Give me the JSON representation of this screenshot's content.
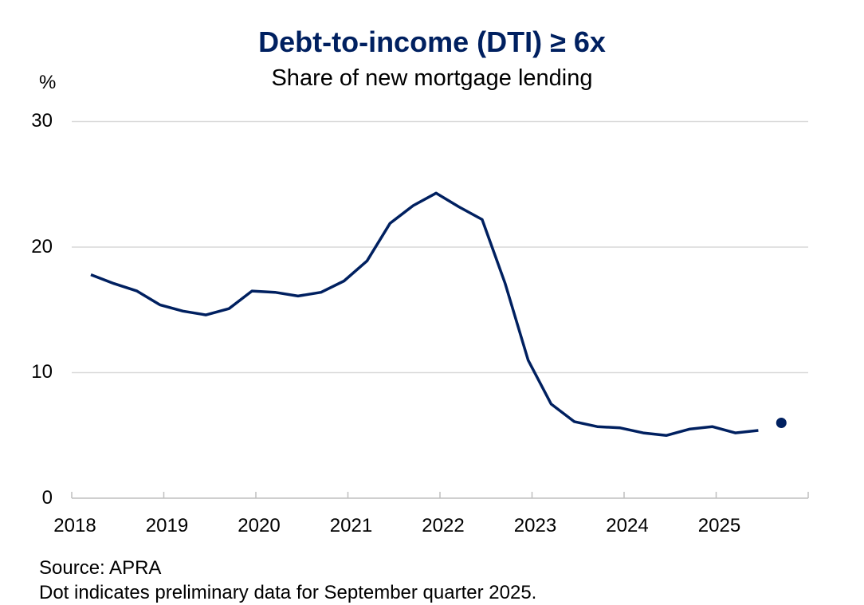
{
  "header": {
    "title": "Debt-to-income (DTI) ≥ 6x",
    "subtitle": "Share of new mortgage lending",
    "unit": "%"
  },
  "axes": {
    "y_ticks": [
      "30",
      "20",
      "10",
      "0"
    ],
    "x_ticks": [
      "2018",
      "2019",
      "2020",
      "2021",
      "2022",
      "2023",
      "2024",
      "2025"
    ]
  },
  "footer": {
    "source": "Source: APRA",
    "note": "Dot indicates preliminary data for September quarter 2025."
  },
  "colors": {
    "line": "#002060",
    "grid": "#d9d9d9",
    "axis": "#bfbfbf",
    "title": "#002060"
  },
  "chart_data": {
    "type": "line",
    "title": "Debt-to-income (DTI) ≥ 6x",
    "subtitle": "Share of new mortgage lending",
    "xlabel": "",
    "ylabel": "%",
    "ylim": [
      0,
      30
    ],
    "y_ticks": [
      0,
      10,
      20,
      30
    ],
    "x_tick_labels": [
      "2018",
      "2019",
      "2020",
      "2021",
      "2022",
      "2023",
      "2024",
      "2025"
    ],
    "grid": true,
    "legend": null,
    "series": [
      {
        "name": "DTI ≥ 6x share of new mortgage lending",
        "style": "line",
        "x": [
          "Mar-2018",
          "Jun-2018",
          "Sep-2018",
          "Dec-2018",
          "Mar-2019",
          "Jun-2019",
          "Sep-2019",
          "Dec-2019",
          "Mar-2020",
          "Jun-2020",
          "Sep-2020",
          "Dec-2020",
          "Mar-2021",
          "Jun-2021",
          "Sep-2021",
          "Dec-2021",
          "Mar-2022",
          "Jun-2022",
          "Sep-2022",
          "Dec-2022",
          "Mar-2023",
          "Jun-2023",
          "Sep-2023",
          "Dec-2023",
          "Mar-2024",
          "Jun-2024",
          "Sep-2024",
          "Dec-2024",
          "Mar-2025",
          "Jun-2025"
        ],
        "values": [
          17.8,
          17.1,
          16.5,
          15.4,
          14.9,
          14.6,
          15.1,
          16.5,
          16.4,
          16.1,
          16.4,
          17.3,
          18.9,
          21.9,
          23.3,
          24.3,
          23.2,
          22.2,
          17.1,
          11.0,
          7.5,
          6.1,
          5.7,
          5.6,
          5.2,
          5.0,
          5.5,
          5.7,
          5.2,
          5.4
        ]
      },
      {
        "name": "Preliminary (dot)",
        "style": "dot",
        "x": [
          "Sep-2025"
        ],
        "values": [
          6.0
        ]
      }
    ],
    "annotations": [
      "Dot indicates preliminary data for September quarter 2025."
    ],
    "source": "APRA"
  }
}
